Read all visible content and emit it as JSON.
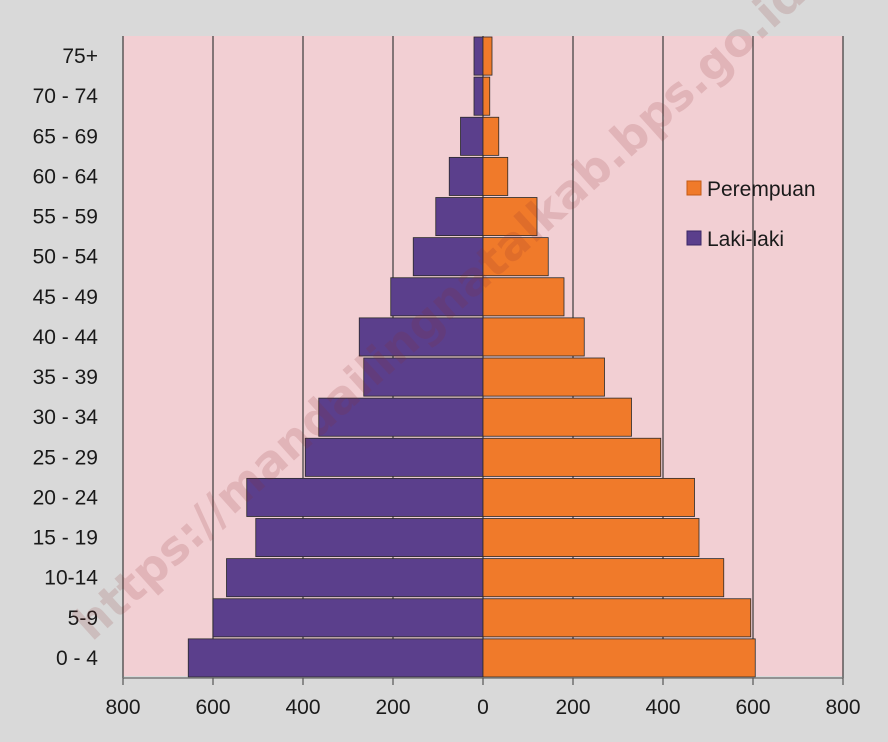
{
  "chart_data": {
    "type": "bar",
    "orientation": "horizontal",
    "chart_kind": "population-pyramid",
    "categories": [
      "0 - 4",
      "5-9",
      "10-14",
      "15 - 19",
      "20 - 24",
      "25 - 29",
      "30 - 34",
      "35 - 39",
      "40 - 44",
      "45 - 49",
      "50 - 54",
      "55 - 59",
      "60 - 64",
      "65 - 69",
      "70 - 74",
      "75+"
    ],
    "series": [
      {
        "name": "Laki-laki",
        "side": "left",
        "color": "#5b3f8c",
        "values": [
          655,
          600,
          570,
          505,
          525,
          395,
          365,
          265,
          275,
          205,
          155,
          105,
          75,
          50,
          20,
          20
        ]
      },
      {
        "name": "Perempuan",
        "side": "right",
        "color": "#f07a2a",
        "values": [
          605,
          595,
          535,
          480,
          470,
          395,
          330,
          270,
          225,
          180,
          145,
          120,
          55,
          35,
          15,
          20
        ]
      }
    ],
    "x_ticks": [
      "800",
      "600",
      "400",
      "200",
      "0",
      "200",
      "400",
      "600",
      "800"
    ],
    "xlim": [
      -800,
      800
    ],
    "grid": "vertical",
    "legend": {
      "placement": "right",
      "entries": [
        "Perempuan",
        "Laki-laki"
      ]
    },
    "plot_background": "#f2cfd3",
    "title": "",
    "xlabel": "",
    "ylabel": ""
  },
  "watermark": {
    "text": "https://mandailingnatalkab.bps.go.id"
  }
}
